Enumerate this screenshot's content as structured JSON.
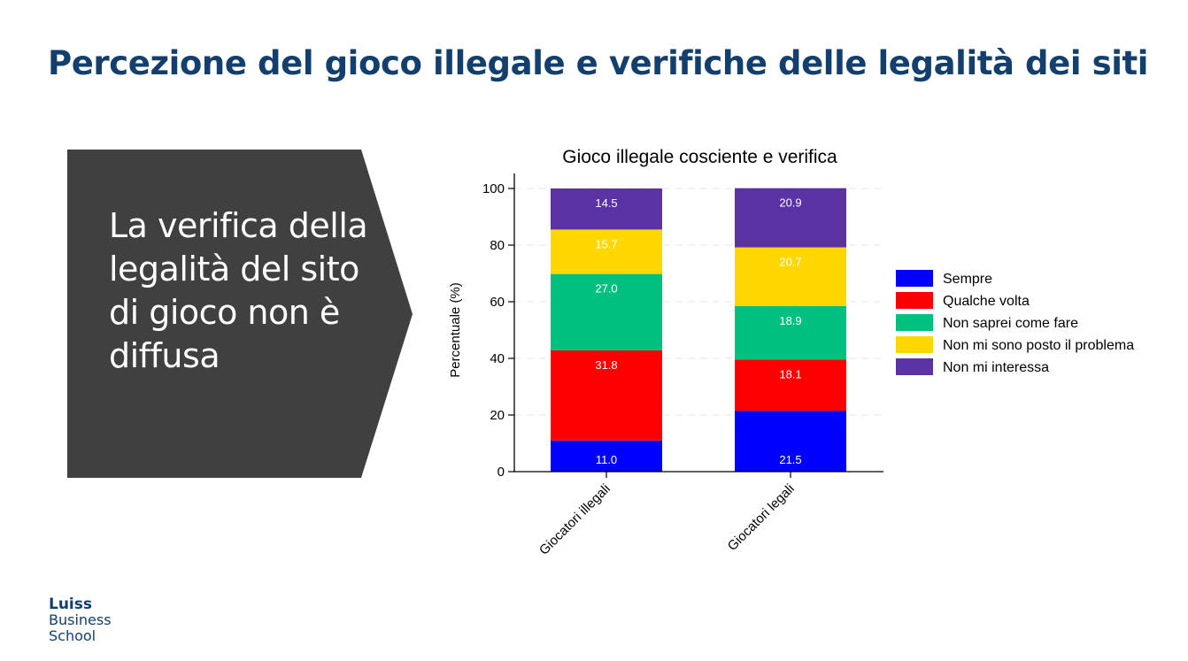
{
  "slide": {
    "title": "Percezione del gioco illegale e verifiche delle legalità dei siti",
    "callout_text": "La verifica della legalità del sito di gioco non è diffusa",
    "logo": {
      "line1": "Luiss",
      "line2": "Business",
      "line3": "School"
    }
  },
  "colors": {
    "title": "#123f6d",
    "callout_bg": "#404040"
  },
  "chart_data": {
    "type": "bar",
    "stacked": true,
    "title": "Gioco illegale cosciente e verifica",
    "xlabel": "",
    "ylabel": "Percentuale (%)",
    "ylim": [
      0,
      100
    ],
    "yticks": [
      0,
      20,
      40,
      60,
      80,
      100
    ],
    "grid": true,
    "legend_position": "right",
    "categories": [
      "Giocatori illegali",
      "Giocatori legali"
    ],
    "series": [
      {
        "name": "Sempre",
        "color": "#0000ff",
        "values": [
          11.0,
          21.5
        ]
      },
      {
        "name": "Qualche volta",
        "color": "#ff0000",
        "values": [
          31.8,
          18.1
        ]
      },
      {
        "name": "Non saprei come fare",
        "color": "#00c07f",
        "values": [
          27.0,
          18.9
        ]
      },
      {
        "name": "Non mi sono posto il problema",
        "color": "#ffd700",
        "values": [
          15.7,
          20.7
        ]
      },
      {
        "name": "Non mi interessa",
        "color": "#5a32a3",
        "values": [
          14.5,
          20.9
        ]
      }
    ]
  }
}
